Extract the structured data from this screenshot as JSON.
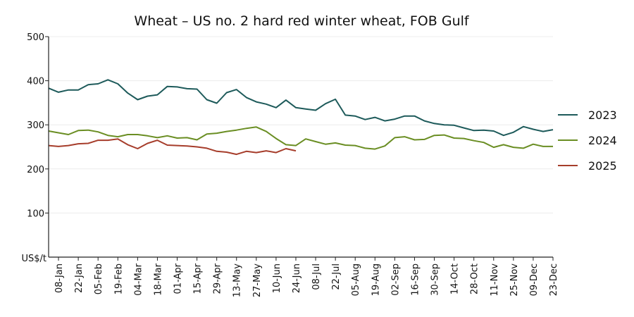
{
  "chart_data": {
    "type": "line",
    "title": "Wheat – US no. 2 hard red winter wheat, FOB Gulf",
    "ylabel": "US$/t",
    "xlabel": "",
    "ylim": [
      0,
      500
    ],
    "yticks": [
      100,
      200,
      300,
      400,
      500
    ],
    "xticks": [
      "08-Jan",
      "22-Jan",
      "05-Feb",
      "19-Feb",
      "04-Mar",
      "18-Mar",
      "01-Apr",
      "15-Apr",
      "29-Apr",
      "13-May",
      "27-May",
      "10-Jun",
      "24-Jun",
      "08-Jul",
      "22-Jul",
      "05-Aug",
      "19-Aug",
      "02-Sep",
      "16-Sep",
      "30-Sep",
      "14-Oct",
      "28-Oct",
      "11-Nov",
      "25-Nov",
      "09-Dec",
      "23-Dec"
    ],
    "x_first": "01-Jan",
    "x_step": "weekly",
    "grid": "horizontal",
    "legend_position": "right",
    "series": [
      {
        "name": "2023",
        "color": "#1d5a5a",
        "values": [
          383,
          374,
          379,
          379,
          391,
          393,
          402,
          393,
          372,
          357,
          365,
          368,
          387,
          386,
          382,
          381,
          357,
          349,
          373,
          380,
          362,
          352,
          347,
          339,
          356,
          339,
          336,
          333,
          348,
          358,
          322,
          320,
          312,
          317,
          309,
          313,
          320,
          320,
          309,
          303,
          300,
          299,
          293,
          287,
          288,
          286,
          276,
          283,
          296,
          290,
          285,
          289
        ]
      },
      {
        "name": "2024",
        "color": "#6a8e23",
        "values": [
          286,
          282,
          278,
          287,
          288,
          284,
          276,
          273,
          278,
          278,
          275,
          271,
          275,
          270,
          271,
          266,
          279,
          281,
          285,
          288,
          292,
          295,
          285,
          269,
          255,
          253,
          268,
          262,
          256,
          259,
          254,
          253,
          247,
          245,
          252,
          271,
          273,
          266,
          267,
          276,
          277,
          270,
          269,
          264,
          260,
          249,
          255,
          249,
          247,
          256,
          251,
          251
        ]
      },
      {
        "name": "2025",
        "color": "#a63d2b",
        "values": [
          253,
          251,
          253,
          257,
          258,
          265,
          265,
          268,
          255,
          246,
          258,
          265,
          254,
          253,
          252,
          250,
          247,
          240,
          238,
          233,
          240,
          237,
          241,
          237,
          246,
          241
        ]
      }
    ]
  }
}
